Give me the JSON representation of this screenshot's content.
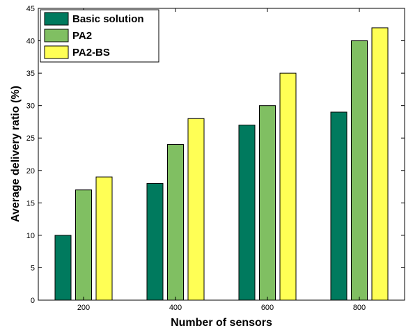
{
  "chart_data": {
    "type": "bar",
    "categories": [
      "200",
      "400",
      "600",
      "800"
    ],
    "series": [
      {
        "name": "Basic solution",
        "values": [
          10,
          18,
          27,
          29
        ],
        "color": "#007a5e"
      },
      {
        "name": "PA2",
        "values": [
          17,
          24,
          30,
          40
        ],
        "color": "#80bf62"
      },
      {
        "name": "PA2-BS",
        "values": [
          19,
          28,
          35,
          42
        ],
        "color": "#ffff55"
      }
    ],
    "xlabel": "Number of sensors",
    "ylabel": "Average delivery ratio (%)",
    "ylim": [
      0,
      45
    ],
    "yticks": [
      0,
      5,
      10,
      15,
      20,
      25,
      30,
      35,
      40,
      45
    ],
    "grid": false,
    "legend_position": "top-left"
  }
}
